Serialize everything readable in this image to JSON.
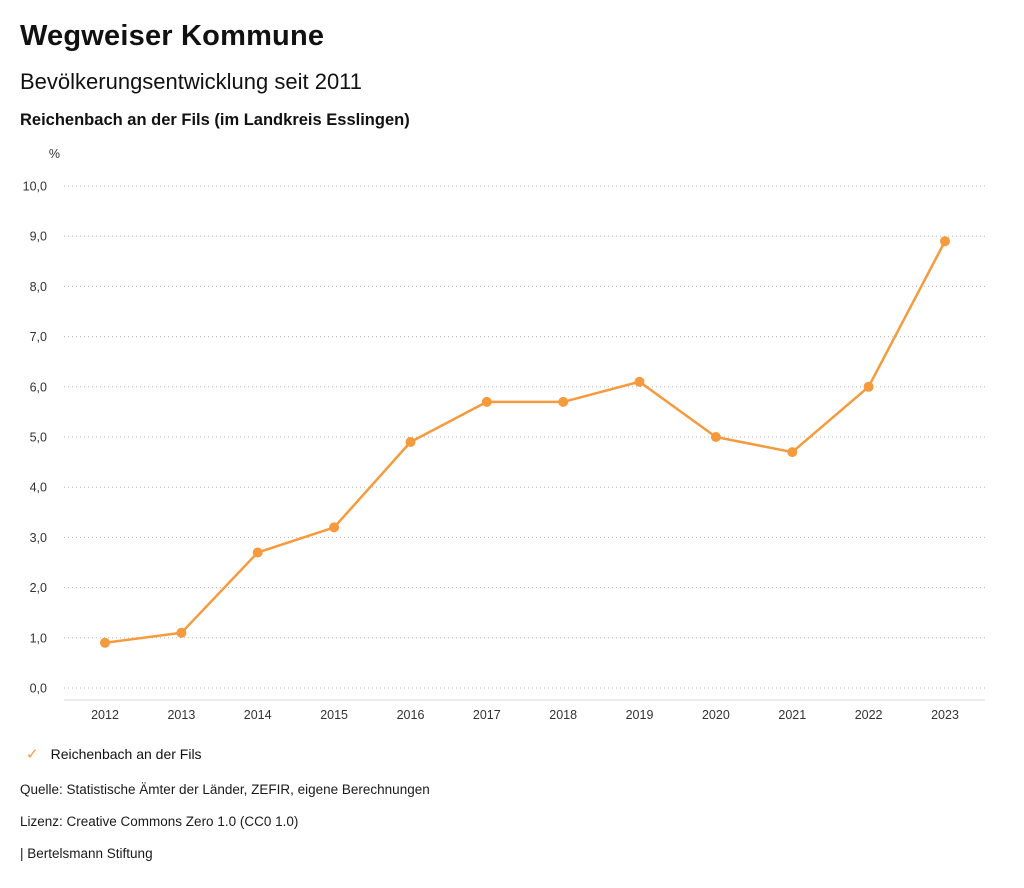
{
  "header": {
    "title": "Wegweiser Kommune",
    "subtitle": "Bevölkerungsentwicklung seit 2011",
    "region": "Reichenbach an der Fils (im Landkreis Esslingen)"
  },
  "legend": {
    "check_icon": "✓",
    "label": "Reichenbach an der Fils",
    "color": "#F59B3E"
  },
  "footer": {
    "source": "Quelle: Statistische Ämter der Länder, ZEFIR, eigene Berechnungen",
    "license": "Lizenz: Creative Commons Zero 1.0 (CC0 1.0)",
    "publisher": "| Bertelsmann Stiftung"
  },
  "chart_data": {
    "type": "line",
    "title": "Bevölkerungsentwicklung seit 2011",
    "subtitle": "Reichenbach an der Fils (im Landkreis Esslingen)",
    "unit": "%",
    "categories": [
      "2012",
      "2013",
      "2014",
      "2015",
      "2016",
      "2017",
      "2018",
      "2019",
      "2020",
      "2021",
      "2022",
      "2023"
    ],
    "series": [
      {
        "name": "Reichenbach an der Fils",
        "color": "#F59B3E",
        "values": [
          0.9,
          1.1,
          2.7,
          3.2,
          4.9,
          5.7,
          5.7,
          6.1,
          5.0,
          4.7,
          6.0,
          8.9
        ]
      }
    ],
    "ylim": [
      0,
      10
    ],
    "y_tick_step": 1,
    "y_tick_labels": [
      "0,0",
      "1,0",
      "2,0",
      "3,0",
      "4,0",
      "5,0",
      "6,0",
      "7,0",
      "8,0",
      "9,0",
      "10,0"
    ],
    "grid": "dotted-horizontal",
    "legend_position": "bottom-left",
    "marker": "circle"
  }
}
